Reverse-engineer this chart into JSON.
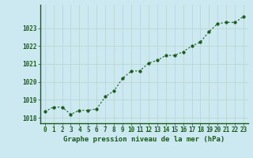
{
  "x": [
    0,
    1,
    2,
    3,
    4,
    5,
    6,
    7,
    8,
    9,
    10,
    11,
    12,
    13,
    14,
    15,
    16,
    17,
    18,
    19,
    20,
    21,
    22,
    23
  ],
  "y": [
    1018.35,
    1018.6,
    1018.6,
    1018.2,
    1018.42,
    1018.42,
    1018.5,
    1019.18,
    1019.5,
    1020.2,
    1020.6,
    1020.62,
    1021.05,
    1021.2,
    1021.48,
    1021.48,
    1021.68,
    1022.0,
    1022.22,
    1022.8,
    1023.25,
    1023.32,
    1023.32,
    1023.65
  ],
  "line_color": "#1a5c1a",
  "marker_color": "#1a5c1a",
  "bg_color": "#cce8f0",
  "grid_color": "#b8d4c8",
  "axis_color": "#1a5c1a",
  "bottom_bar_color": "#1a5c1a",
  "xlabel": "Graphe pression niveau de la mer (hPa)",
  "ylim": [
    1017.7,
    1024.3
  ],
  "yticks": [
    1018,
    1019,
    1020,
    1021,
    1022,
    1023
  ],
  "xticks": [
    0,
    1,
    2,
    3,
    4,
    5,
    6,
    7,
    8,
    9,
    10,
    11,
    12,
    13,
    14,
    15,
    16,
    17,
    18,
    19,
    20,
    21,
    22,
    23
  ],
  "xlabel_fontsize": 6.5,
  "tick_fontsize": 5.5,
  "line_width": 0.8,
  "marker_size": 2.5,
  "fig_width": 3.2,
  "fig_height": 2.0,
  "dpi": 100
}
